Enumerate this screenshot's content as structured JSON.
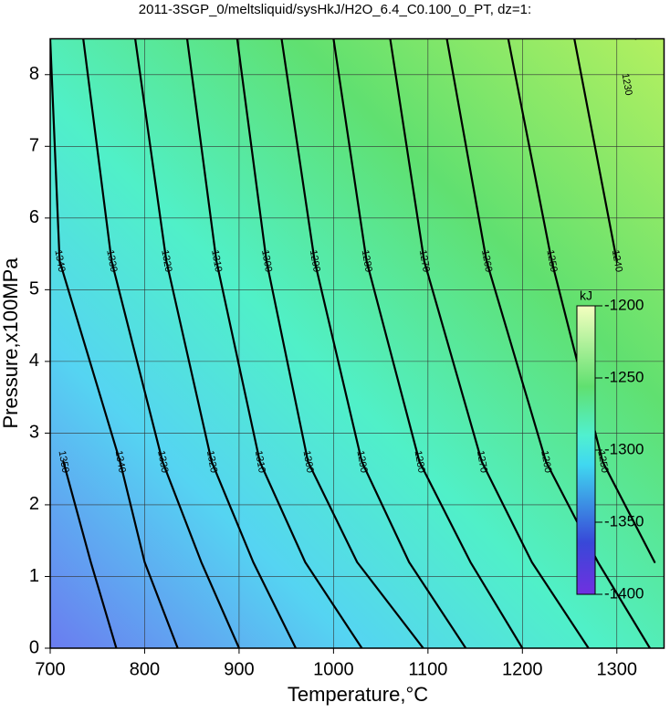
{
  "chart_data": {
    "type": "contour",
    "title": "2011-3SGP_0/meltsliquid/sysHkJ/H2O_6.4_C0.100_0_PT, dz=1:",
    "x_label": "Temperature,°C",
    "y_label": "Pressure,x100MPa",
    "xlim": [
      700,
      1350
    ],
    "ylim": [
      0,
      8.5
    ],
    "xticks": [
      700,
      800,
      900,
      1000,
      1100,
      1200,
      1300
    ],
    "yticks": [
      0,
      1,
      2,
      3,
      4,
      5,
      6,
      7,
      8
    ],
    "grid": true,
    "line_color": "#000000",
    "series": [
      {
        "name": "1350",
        "x": [
          770,
          743,
          714
        ],
        "y": [
          0,
          1.2,
          2.6
        ]
      },
      {
        "name": "1340",
        "x": [
          835,
          800,
          774,
          710,
          700
        ],
        "y": [
          0,
          1.2,
          2.6,
          5.4,
          8.5
        ]
      },
      {
        "name": "1330",
        "x": [
          900,
          860,
          819,
          765,
          735
        ],
        "y": [
          0,
          1.2,
          2.6,
          5.4,
          8.5
        ]
      },
      {
        "name": "1320",
        "x": [
          960,
          915,
          871,
          823,
          790
        ],
        "y": [
          0,
          1.2,
          2.6,
          5.4,
          8.5
        ]
      },
      {
        "name": "1310",
        "x": [
          1030,
          970,
          922,
          876,
          845
        ],
        "y": [
          0,
          1.2,
          2.6,
          5.4,
          8.5
        ]
      },
      {
        "name": "1300",
        "x": [
          1095,
          1025,
          973,
          929,
          898
        ],
        "y": [
          0,
          1.2,
          2.6,
          5.4,
          8.5
        ]
      },
      {
        "name": "1290",
        "x": [
          1140,
          1080,
          1030,
          980,
          945
        ],
        "y": [
          0,
          1.2,
          2.6,
          5.4,
          8.5
        ]
      },
      {
        "name": "1280",
        "x": [
          1200,
          1145,
          1091,
          1035,
          1000
        ],
        "y": [
          0,
          1.2,
          2.6,
          5.4,
          8.5
        ]
      },
      {
        "name": "1270",
        "x": [
          1270,
          1210,
          1157,
          1096,
          1060
        ],
        "y": [
          0,
          1.2,
          2.6,
          5.4,
          8.5
        ]
      },
      {
        "name": "1260",
        "x": [
          1335,
          1280,
          1225,
          1162,
          1120
        ],
        "y": [
          0,
          1.2,
          2.6,
          5.4,
          8.5
        ]
      },
      {
        "name": "1250",
        "x": [
          1340,
          1285,
          1231,
          1185
        ],
        "y": [
          1.2,
          2.6,
          5.4,
          8.5
        ]
      },
      {
        "name": "1240",
        "x": [
          1300,
          1255
        ],
        "y": [
          5.4,
          8.5
        ]
      },
      {
        "name": "1230",
        "x": [
          1320
        ],
        "y": [
          8.5
        ]
      }
    ],
    "colorbar": {
      "label": "kJ",
      "lim": [
        -1400,
        -1200
      ],
      "ticks": [
        -1200,
        -1250,
        -1300,
        -1350,
        -1400
      ]
    }
  }
}
